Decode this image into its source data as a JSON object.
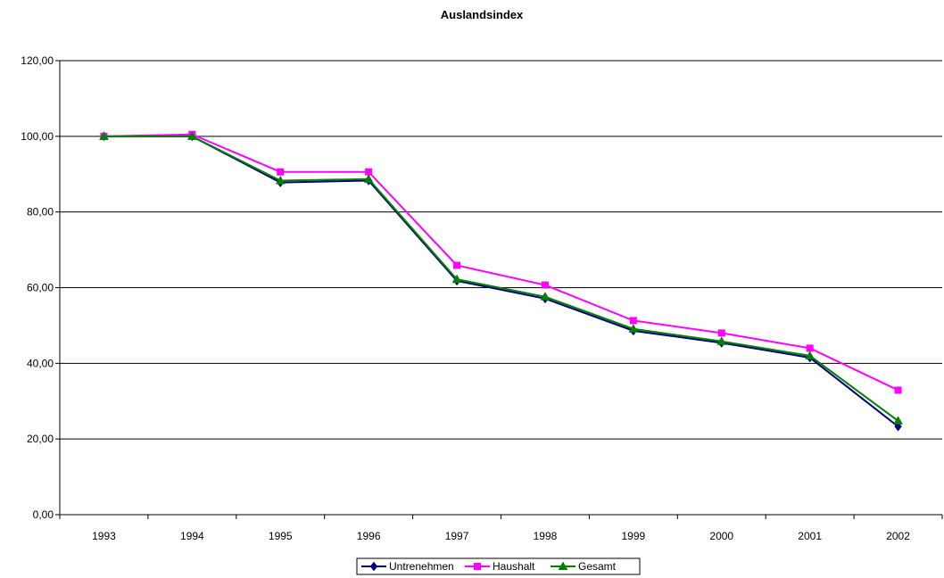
{
  "chart_data": {
    "type": "line",
    "title": "Auslandsindex",
    "xlabel": "",
    "ylabel": "",
    "categories": [
      "1993",
      "1994",
      "1995",
      "1996",
      "1997",
      "1998",
      "1999",
      "2000",
      "2001",
      "2002"
    ],
    "ylim": [
      0,
      120
    ],
    "yticks": [
      0,
      20,
      40,
      60,
      80,
      100,
      120
    ],
    "ytick_labels": [
      "0,00",
      "20,00",
      "40,00",
      "60,00",
      "80,00",
      "100,00",
      "120,00"
    ],
    "grid": true,
    "legend_position": "bottom",
    "series": [
      {
        "name": "Untrenehmen",
        "color": "#000080",
        "marker": "diamond",
        "values": [
          100.0,
          100.0,
          87.8,
          88.3,
          61.8,
          57.1,
          48.6,
          45.4,
          41.5,
          23.3
        ]
      },
      {
        "name": "Haushalt",
        "color": "#FF00FF",
        "marker": "square",
        "values": [
          100.0,
          100.5,
          90.6,
          90.6,
          65.9,
          60.7,
          51.3,
          48.0,
          44.0,
          32.9
        ]
      },
      {
        "name": "Gesamt",
        "color": "#008000",
        "marker": "triangle",
        "values": [
          100.0,
          100.0,
          88.3,
          88.7,
          62.2,
          57.6,
          49.1,
          45.8,
          42.0,
          24.8
        ]
      }
    ]
  }
}
